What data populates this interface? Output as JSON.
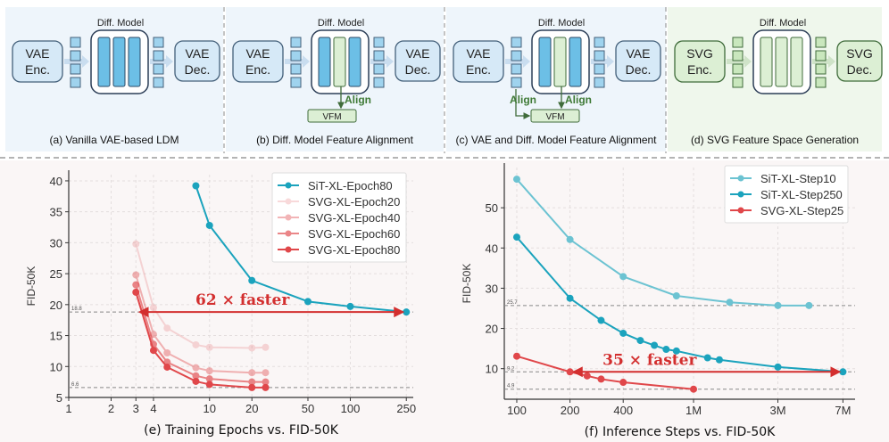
{
  "diagram": {
    "colors": {
      "blue_bg": "#eef5fb",
      "green_bg": "#eff7ec",
      "blue_fill": "#d6e9f7",
      "blue_bar": "#6cbfe6",
      "green_fill": "#dcefd4",
      "green_stroke": "#3f6b3a",
      "align_text": "#3f7a36"
    },
    "panels": [
      {
        "id": "a",
        "caption": "(a) Vanilla VAE-based LDM",
        "enc": [
          "VAE",
          "Enc."
        ],
        "dec": [
          "VAE",
          "Dec."
        ],
        "model_label": "Diff. Model",
        "theme": "blue",
        "bars": [
          "blue",
          "blue",
          "blue"
        ],
        "align_model": false,
        "align_latent": false
      },
      {
        "id": "b",
        "caption": "(b) Diff. Model Feature Alignment",
        "enc": [
          "VAE",
          "Enc."
        ],
        "dec": [
          "VAE",
          "Dec."
        ],
        "model_label": "Diff. Model",
        "theme": "blue",
        "bars": [
          "blue",
          "green",
          "blue"
        ],
        "align_model": true,
        "align_latent": false,
        "vfm": "VFM",
        "align_label": "Align"
      },
      {
        "id": "c",
        "caption": "(c) VAE and Diff. Model Feature Alignment",
        "enc": [
          "VAE",
          "Enc."
        ],
        "dec": [
          "VAE",
          "Dec."
        ],
        "model_label": "Diff. Model",
        "theme": "blue",
        "bars": [
          "blue",
          "green",
          "blue"
        ],
        "align_model": true,
        "align_latent": true,
        "vfm": "VFM",
        "align_label": "Align"
      },
      {
        "id": "d",
        "caption": "(d) SVG Feature Space Generation",
        "enc": [
          "SVG",
          "Enc."
        ],
        "dec": [
          "SVG",
          "Dec."
        ],
        "model_label": "Diff. Model",
        "theme": "green",
        "bars": [
          "green",
          "green",
          "green"
        ],
        "align_model": false,
        "align_latent": false
      }
    ]
  },
  "chart_data": [
    {
      "type": "line",
      "title": "(e) Training Epochs vs. FID-50K",
      "xlabel": "",
      "ylabel": "FID-50K",
      "xscale": "log",
      "xlim": [
        1,
        280
      ],
      "ylim": [
        5,
        41
      ],
      "xticks": [
        1,
        2,
        3,
        4,
        10,
        20,
        50,
        100,
        250
      ],
      "xtick_labels": [
        "1",
        "2",
        "3",
        "4",
        "10",
        "20",
        "50",
        "100",
        "250"
      ],
      "yticks": [
        5,
        10,
        15,
        20,
        25,
        30,
        35,
        40
      ],
      "grid": true,
      "legend": "top-right",
      "reference_lines": [
        {
          "y": 18.8,
          "label": "18.8"
        },
        {
          "y": 6.6,
          "label": "6.6"
        }
      ],
      "annotation": {
        "text": "62 × faster",
        "y": 18.8,
        "from_x": 250,
        "to_x": 3.2,
        "color": "#d32f2f"
      },
      "series": [
        {
          "name": "SiT-XL-Epoch80",
          "color": "#1ba3bd",
          "opacity": 1,
          "x": [
            8,
            10,
            20,
            50,
            100,
            250
          ],
          "y": [
            39.2,
            32.8,
            23.9,
            20.5,
            19.7,
            18.8
          ]
        },
        {
          "name": "SVG-XL-Epoch20",
          "color": "#e0474a",
          "opacity": 0.2,
          "x": [
            3,
            4,
            5,
            8,
            10,
            20,
            25
          ],
          "y": [
            29.8,
            19.5,
            16.2,
            13.5,
            13.1,
            13.0,
            13.1
          ]
        },
        {
          "name": "SVG-XL-Epoch40",
          "color": "#e0474a",
          "opacity": 0.4,
          "x": [
            3,
            4,
            5,
            8,
            10,
            20,
            25
          ],
          "y": [
            24.8,
            15.2,
            12.2,
            9.8,
            9.3,
            9.0,
            9.0
          ]
        },
        {
          "name": "SVG-XL-Epoch60",
          "color": "#e0474a",
          "opacity": 0.65,
          "x": [
            3,
            4,
            5,
            8,
            10,
            20,
            25
          ],
          "y": [
            23.2,
            13.6,
            10.7,
            8.5,
            8.0,
            7.5,
            7.5
          ]
        },
        {
          "name": "SVG-XL-Epoch80",
          "color": "#e0474a",
          "opacity": 1,
          "x": [
            3,
            4,
            5,
            8,
            10,
            20,
            25
          ],
          "y": [
            22.0,
            12.6,
            9.9,
            7.6,
            7.1,
            6.6,
            6.6
          ]
        }
      ]
    },
    {
      "type": "line",
      "title": "(f) Inference Steps vs. FID-50K",
      "xlabel": "",
      "ylabel": "FID-50K",
      "xscale": "log",
      "xlim": [
        85,
        8200
      ],
      "ylim": [
        2.4,
        60
      ],
      "xticks": [
        100,
        200,
        400,
        1000,
        3000,
        7000
      ],
      "xtick_labels": [
        "100",
        "200",
        "400",
        "1M",
        "3M",
        "7M"
      ],
      "yticks": [
        10,
        20,
        30,
        40,
        50
      ],
      "grid": true,
      "legend": "top-right",
      "reference_lines": [
        {
          "y": 25.7,
          "label": "25.7"
        },
        {
          "y": 9.2,
          "label": "9.2"
        },
        {
          "y": 4.9,
          "label": "4.9"
        }
      ],
      "annotation": {
        "text": "35 × faster",
        "y": 9.2,
        "from_x": 7000,
        "to_x": 210,
        "color": "#d32f2f"
      },
      "series": [
        {
          "name": "SiT-XL-Step10",
          "color": "#6cc3d2",
          "opacity": 1,
          "x": [
            100,
            200,
            400,
            800,
            1600,
            3000,
            4500
          ],
          "y": [
            57.1,
            42.1,
            32.9,
            28.1,
            26.5,
            25.7,
            25.7
          ]
        },
        {
          "name": "SiT-XL-Step250",
          "color": "#1ba3bd",
          "opacity": 1,
          "x": [
            100,
            200,
            300,
            400,
            500,
            600,
            700,
            800,
            1200,
            1400,
            3000,
            7000
          ],
          "y": [
            42.7,
            27.5,
            22.0,
            18.8,
            17.0,
            15.8,
            14.8,
            14.4,
            12.7,
            12.2,
            10.4,
            9.2
          ]
        },
        {
          "name": "SVG-XL-Step25",
          "color": "#e0474a",
          "opacity": 1,
          "x": [
            100,
            200,
            250,
            300,
            400,
            1000
          ],
          "y": [
            13.1,
            9.2,
            8.2,
            7.4,
            6.6,
            4.9
          ]
        }
      ]
    }
  ]
}
